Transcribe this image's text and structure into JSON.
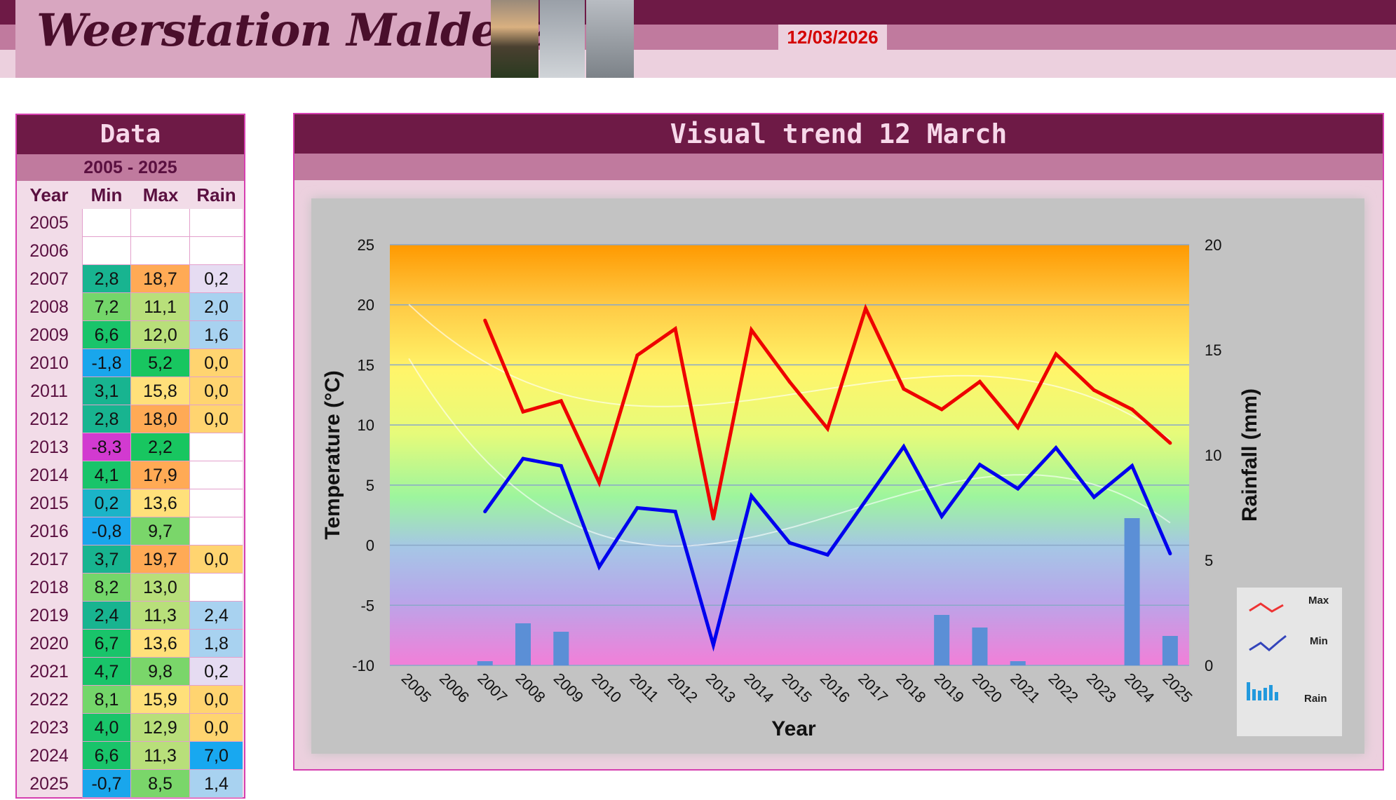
{
  "header": {
    "title": "Weerstation Malderen",
    "date": "12/03/2026"
  },
  "table": {
    "title": "Data",
    "range": "2005 - 2025",
    "headers": {
      "year": "Year",
      "min": "Min",
      "max": "Max",
      "rain": "Rain"
    },
    "rows": [
      {
        "year": "2005",
        "min": "",
        "max": "",
        "rain": ""
      },
      {
        "year": "2006",
        "min": "",
        "max": "",
        "rain": ""
      },
      {
        "year": "2007",
        "min": "2,8",
        "max": "18,7",
        "rain": "0,2"
      },
      {
        "year": "2008",
        "min": "7,2",
        "max": "11,1",
        "rain": "2,0"
      },
      {
        "year": "2009",
        "min": "6,6",
        "max": "12,0",
        "rain": "1,6"
      },
      {
        "year": "2010",
        "min": "-1,8",
        "max": "5,2",
        "rain": "0,0"
      },
      {
        "year": "2011",
        "min": "3,1",
        "max": "15,8",
        "rain": "0,0"
      },
      {
        "year": "2012",
        "min": "2,8",
        "max": "18,0",
        "rain": "0,0"
      },
      {
        "year": "2013",
        "min": "-8,3",
        "max": "2,2",
        "rain": ""
      },
      {
        "year": "2014",
        "min": "4,1",
        "max": "17,9",
        "rain": ""
      },
      {
        "year": "2015",
        "min": "0,2",
        "max": "13,6",
        "rain": ""
      },
      {
        "year": "2016",
        "min": "-0,8",
        "max": "9,7",
        "rain": ""
      },
      {
        "year": "2017",
        "min": "3,7",
        "max": "19,7",
        "rain": "0,0"
      },
      {
        "year": "2018",
        "min": "8,2",
        "max": "13,0",
        "rain": ""
      },
      {
        "year": "2019",
        "min": "2,4",
        "max": "11,3",
        "rain": "2,4"
      },
      {
        "year": "2020",
        "min": "6,7",
        "max": "13,6",
        "rain": "1,8"
      },
      {
        "year": "2021",
        "min": "4,7",
        "max": "9,8",
        "rain": "0,2"
      },
      {
        "year": "2022",
        "min": "8,1",
        "max": "15,9",
        "rain": "0,0"
      },
      {
        "year": "2023",
        "min": "4,0",
        "max": "12,9",
        "rain": "0,0"
      },
      {
        "year": "2024",
        "min": "6,6",
        "max": "11,3",
        "rain": "7,0"
      },
      {
        "year": "2025",
        "min": "-0,7",
        "max": "8,5",
        "rain": "1,4"
      }
    ]
  },
  "chart_title": "Visual  trend 12 March",
  "chart_data": {
    "type": "line",
    "title": "Visual  trend 12 March",
    "xlabel": "Year",
    "ylabel": "Temperature (°C)",
    "y2label": "Rainfall (mm)",
    "ylim": [
      -10,
      25
    ],
    "y2lim": [
      0,
      20
    ],
    "yticks": [
      "25",
      "20",
      "15",
      "10",
      "5",
      "0",
      "-5",
      "-10"
    ],
    "y2ticks": [
      "20",
      "15",
      "10",
      "5",
      "0"
    ],
    "categories": [
      "2005",
      "2006",
      "2007",
      "2008",
      "2009",
      "2010",
      "2011",
      "2012",
      "2013",
      "2014",
      "2015",
      "2016",
      "2017",
      "2018",
      "2019",
      "2020",
      "2021",
      "2022",
      "2023",
      "2024",
      "2025"
    ],
    "series": [
      {
        "name": "Max",
        "type": "line",
        "axis": "left",
        "color": "#ee0000",
        "values": [
          null,
          null,
          18.7,
          11.1,
          12.0,
          5.2,
          15.8,
          18.0,
          2.2,
          17.9,
          13.6,
          9.7,
          19.7,
          13.0,
          11.3,
          13.6,
          9.8,
          15.9,
          12.9,
          11.3,
          8.5
        ]
      },
      {
        "name": "Min",
        "type": "line",
        "axis": "left",
        "color": "#0000ee",
        "values": [
          null,
          null,
          2.8,
          7.2,
          6.6,
          -1.8,
          3.1,
          2.8,
          -8.3,
          4.1,
          0.2,
          -0.8,
          3.7,
          8.2,
          2.4,
          6.7,
          4.7,
          8.1,
          4.0,
          6.6,
          -0.7
        ]
      },
      {
        "name": "Rain",
        "type": "bar",
        "axis": "right",
        "color": "#5b8fd6",
        "values": [
          null,
          null,
          0.2,
          2.0,
          1.6,
          0.0,
          0.0,
          0.0,
          null,
          null,
          null,
          null,
          0.0,
          null,
          2.4,
          1.8,
          0.2,
          0.0,
          0.0,
          7.0,
          1.4
        ]
      }
    ],
    "legend": [
      "Max",
      "Min",
      "Rain"
    ],
    "legend_position": "right",
    "grid": true
  },
  "colors": {
    "banner_dark": "#6e1a46",
    "banner_mid": "#c07a9e",
    "banner_light": "#ecd0de",
    "panel_border": "#d63fb0",
    "date_text": "#d40000"
  }
}
